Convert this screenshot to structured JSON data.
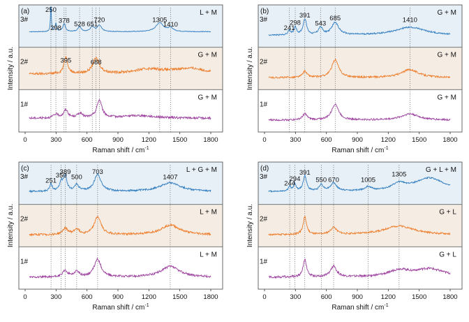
{
  "figure": {
    "xlabel": "Raman shift / cm",
    "xlabel_sup": "-1",
    "ylabel": "Intensity / a.u.",
    "xticks": [
      "0",
      "300",
      "600",
      "900",
      "1200",
      "1500",
      "1800"
    ]
  },
  "colors": {
    "3#": "#2f7cc0",
    "2#": "#ee7d2a",
    "1#": "#9c3f9e"
  },
  "chart_data": [
    {
      "type": "line",
      "panel": "(a)",
      "xlim": [
        0,
        1800
      ],
      "dotted_lines": [
        250,
        298,
        378,
        395,
        528,
        651,
        688,
        720,
        1305,
        1410
      ],
      "series": [
        {
          "name": "3#",
          "condition": "L + M",
          "baseline": 0.4,
          "noise": 0.02,
          "peaks": [
            [
              250,
              1.6,
              5
            ],
            [
              298,
              0.45,
              10
            ],
            [
              378,
              0.45,
              15
            ],
            [
              528,
              0.28,
              20
            ],
            [
              651,
              0.3,
              20
            ],
            [
              720,
              0.35,
              25
            ],
            [
              1305,
              0.5,
              45
            ],
            [
              1410,
              0.2,
              30
            ]
          ],
          "labels": [
            {
              "text": "250",
              "x": 250,
              "y": 1.6
            },
            {
              "text": "298",
              "x": 298,
              "y": 0.5
            },
            {
              "text": "378",
              "x": 378,
              "y": 0.9
            },
            {
              "text": "528",
              "x": 528,
              "y": 0.72
            },
            {
              "text": "651",
              "x": 651,
              "y": 0.72
            },
            {
              "text": "720",
              "x": 720,
              "y": 0.95
            },
            {
              "text": "1305",
              "x": 1305,
              "y": 0.95
            },
            {
              "text": "1410",
              "x": 1410,
              "y": 0.7
            }
          ]
        },
        {
          "name": "2#",
          "condition": "G + M",
          "baseline": 0.4,
          "noise": 0.07,
          "peaks": [
            [
              395,
              0.95,
              22
            ],
            [
              688,
              0.85,
              40
            ],
            [
              1200,
              0.25,
              180
            ],
            [
              1600,
              0.3,
              200
            ]
          ],
          "labels": [
            {
              "text": "395",
              "x": 395,
              "y": 1.05
            },
            {
              "text": "688",
              "x": 688,
              "y": 0.95
            }
          ]
        },
        {
          "name": "1#",
          "condition": "G + M",
          "baseline": 0.3,
          "noise": 0.06,
          "peaks": [
            [
              300,
              0.2,
              30
            ],
            [
              395,
              0.45,
              25
            ],
            [
              530,
              0.25,
              30
            ],
            [
              720,
              1.0,
              30
            ],
            [
              1100,
              0.15,
              200
            ]
          ],
          "labels": []
        }
      ]
    },
    {
      "type": "line",
      "panel": "(b)",
      "xlim": [
        0,
        1800
      ],
      "dotted_lines": [
        241,
        298,
        391,
        543,
        685,
        1410
      ],
      "series": [
        {
          "name": "3#",
          "condition": "G + M",
          "baseline": 0.2,
          "noise": 0.04,
          "peaks": [
            [
              241,
              0.25,
              15
            ],
            [
              298,
              0.45,
              15
            ],
            [
              391,
              0.9,
              20
            ],
            [
              543,
              0.4,
              25
            ],
            [
              685,
              0.7,
              40
            ],
            [
              1410,
              0.45,
              180
            ]
          ],
          "labels": [
            {
              "text": "241",
              "x": 241,
              "y": 0.5
            },
            {
              "text": "298",
              "x": 298,
              "y": 0.8
            },
            {
              "text": "391",
              "x": 391,
              "y": 1.2
            },
            {
              "text": "543",
              "x": 543,
              "y": 0.75
            },
            {
              "text": "685",
              "x": 685,
              "y": 1.05
            },
            {
              "text": "1410",
              "x": 1410,
              "y": 0.95
            }
          ]
        },
        {
          "name": "2#",
          "condition": "G + M",
          "baseline": 0.2,
          "noise": 0.05,
          "peaks": [
            [
              391,
              0.35,
              25
            ],
            [
              685,
              1.0,
              40
            ],
            [
              1410,
              0.45,
              100
            ]
          ],
          "labels": []
        },
        {
          "name": "1#",
          "condition": "G + M",
          "baseline": 0.2,
          "noise": 0.05,
          "peaks": [
            [
              391,
              0.35,
              25
            ],
            [
              685,
              0.9,
              40
            ],
            [
              1410,
              0.35,
              100
            ]
          ],
          "labels": []
        }
      ]
    },
    {
      "type": "line",
      "panel": "(c)",
      "xlim": [
        0,
        1800
      ],
      "dotted_lines": [
        251,
        350,
        389,
        500,
        703,
        1407
      ],
      "series": [
        {
          "name": "3#",
          "condition": "L + G + M",
          "baseline": 0.25,
          "noise": 0.05,
          "peaks": [
            [
              251,
              0.4,
              15
            ],
            [
              350,
              0.5,
              20
            ],
            [
              389,
              0.8,
              20
            ],
            [
              500,
              0.35,
              25
            ],
            [
              703,
              0.95,
              40
            ],
            [
              1407,
              0.5,
              120
            ]
          ],
          "labels": [
            {
              "text": "251",
              "x": 251,
              "y": 0.75
            },
            {
              "text": "350",
              "x": 350,
              "y": 1.05
            },
            {
              "text": "389",
              "x": 389,
              "y": 1.25
            },
            {
              "text": "500",
              "x": 500,
              "y": 0.95
            },
            {
              "text": "703",
              "x": 703,
              "y": 1.25
            },
            {
              "text": "1407",
              "x": 1407,
              "y": 0.95
            }
          ]
        },
        {
          "name": "2#",
          "condition": "L + M",
          "baseline": 0.2,
          "noise": 0.06,
          "peaks": [
            [
              389,
              0.35,
              30
            ],
            [
              500,
              0.3,
              30
            ],
            [
              703,
              1.0,
              40
            ],
            [
              1407,
              0.55,
              110
            ]
          ],
          "labels": []
        },
        {
          "name": "1#",
          "condition": "L + M",
          "baseline": 0.2,
          "noise": 0.06,
          "peaks": [
            [
              389,
              0.35,
              30
            ],
            [
              500,
              0.3,
              30
            ],
            [
              703,
              1.0,
              40
            ],
            [
              1407,
              0.6,
              110
            ]
          ],
          "labels": []
        }
      ]
    },
    {
      "type": "line",
      "panel": "(d)",
      "xlim": [
        0,
        1800
      ],
      "dotted_lines": [
        244,
        294,
        391,
        550,
        670,
        1005,
        1305
      ],
      "series": [
        {
          "name": "3#",
          "condition": "G + L + M",
          "baseline": 0.25,
          "noise": 0.04,
          "peaks": [
            [
              244,
              0.25,
              15
            ],
            [
              294,
              0.4,
              15
            ],
            [
              391,
              0.85,
              20
            ],
            [
              550,
              0.35,
              25
            ],
            [
              670,
              0.45,
              35
            ],
            [
              1005,
              0.2,
              40
            ],
            [
              1305,
              0.35,
              80
            ],
            [
              1600,
              0.75,
              180
            ]
          ],
          "labels": [
            {
              "text": "244",
              "x": 244,
              "y": 0.6
            },
            {
              "text": "294",
              "x": 294,
              "y": 0.85
            },
            {
              "text": "391",
              "x": 391,
              "y": 1.2
            },
            {
              "text": "550",
              "x": 550,
              "y": 0.8
            },
            {
              "text": "670",
              "x": 670,
              "y": 0.8
            },
            {
              "text": "1005",
              "x": 1005,
              "y": 0.8
            },
            {
              "text": "1305",
              "x": 1305,
              "y": 1.1
            }
          ]
        },
        {
          "name": "2#",
          "condition": "G + L",
          "baseline": 0.2,
          "noise": 0.05,
          "peaks": [
            [
              391,
              1.0,
              20
            ],
            [
              670,
              0.4,
              35
            ],
            [
              1305,
              0.5,
              180
            ]
          ],
          "labels": []
        },
        {
          "name": "1#",
          "condition": "G + L",
          "baseline": 0.2,
          "noise": 0.06,
          "peaks": [
            [
              391,
              1.0,
              20
            ],
            [
              670,
              0.6,
              35
            ],
            [
              1305,
              0.35,
              120
            ],
            [
              1600,
              0.45,
              180
            ]
          ],
          "labels": []
        }
      ]
    }
  ]
}
